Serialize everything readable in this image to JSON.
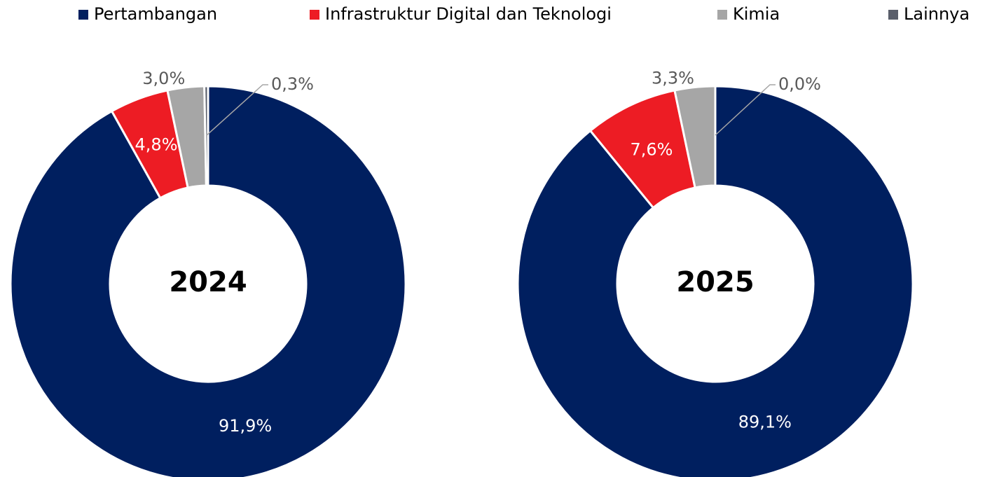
{
  "chart_data": {
    "type": "pie",
    "categories": [
      "Pertambangan",
      "Infrastruktur Digital dan Teknologi",
      "Kimia",
      "Lainnya"
    ],
    "colors": [
      "#001f5f",
      "#ed1c24",
      "#a6a6a6",
      "#5a5f6b"
    ],
    "legend": "top",
    "series": [
      {
        "name": "2024",
        "values": [
          91.9,
          4.8,
          3.0,
          0.3
        ],
        "value_labels": [
          "91,9%",
          "4,8%",
          "3,0%",
          "0,3%"
        ]
      },
      {
        "name": "2025",
        "values": [
          89.1,
          7.6,
          3.3,
          0.0
        ],
        "value_labels": [
          "89,1%",
          "7,6%",
          "3,3%",
          "0,0%"
        ]
      }
    ]
  }
}
